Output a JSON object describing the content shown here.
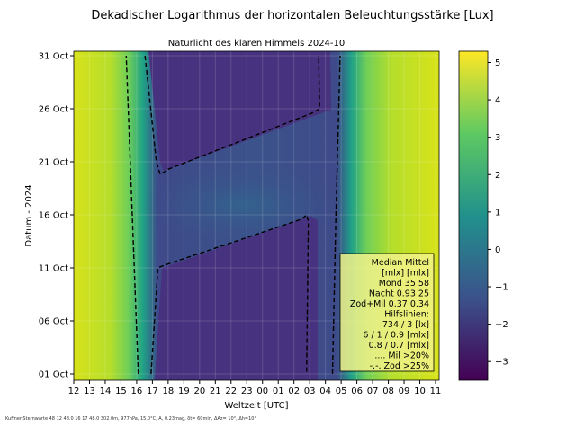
{
  "chart_data": {
    "type": "heatmap",
    "suptitle": "Dekadischer Logarithmus der horizontalen Beleuchtungsstärke [Lux]",
    "title": "Naturlicht des klaren Himmels 2024-10",
    "xlabel": "Weltzeit [UTC]",
    "ylabel": "Datum - 2024",
    "x_ticks": [
      "12",
      "13",
      "14",
      "15",
      "16",
      "17",
      "18",
      "19",
      "20",
      "21",
      "22",
      "23",
      "00",
      "01",
      "02",
      "03",
      "04",
      "05",
      "06",
      "07",
      "08",
      "09",
      "10",
      "11"
    ],
    "y_ticks": [
      {
        "day": 1,
        "label": "01 Oct"
      },
      {
        "day": 6,
        "label": "06 Oct"
      },
      {
        "day": 11,
        "label": "11 Oct"
      },
      {
        "day": 16,
        "label": "16 Oct"
      },
      {
        "day": 21,
        "label": "21 Oct"
      },
      {
        "day": 26,
        "label": "26 Oct"
      },
      {
        "day": 31,
        "label": "31 Oct"
      }
    ],
    "colorbar": {
      "ticks": [
        -3,
        -2,
        -1,
        0,
        1,
        2,
        3,
        4,
        5
      ],
      "range": [
        -3.5,
        5.3
      ],
      "colormap": [
        "#440154",
        "#3b528b",
        "#21918c",
        "#5ec962",
        "#fde725"
      ]
    },
    "grid": true,
    "contour_lines": [
      {
        "style": "dashed",
        "points": [
          [
            "1",
            "16:06"
          ],
          [
            "16",
            "15:43"
          ],
          [
            "31",
            "15:20"
          ]
        ]
      },
      {
        "style": "dashed",
        "points": [
          [
            "1",
            "16:55"
          ],
          [
            "11",
            "17:21"
          ],
          [
            "11.2",
            "17:40"
          ],
          [
            "15.6",
            "02:30"
          ],
          [
            "16",
            "02:48"
          ],
          [
            "15.4",
            "02:55"
          ],
          [
            "1",
            "02:48"
          ]
        ]
      },
      {
        "style": "dashed",
        "points": [
          [
            "31",
            "16:32"
          ],
          [
            "21",
            "17:15"
          ],
          [
            "19.8",
            "17:30"
          ],
          [
            "20.3",
            "18:00"
          ],
          [
            "25.6",
            "03:10"
          ],
          [
            "26",
            "03:38"
          ],
          [
            "31",
            "03:34"
          ]
        ]
      },
      {
        "style": "dashed",
        "points": [
          [
            "1",
            "04:27"
          ],
          [
            "16",
            "04:40"
          ],
          [
            "31",
            "04:56"
          ]
        ]
      }
    ],
    "legend": {
      "placement": "bottom-right",
      "lines": [
        "Median Mittel",
        "[mlx]  [mlx]",
        "Mond   35  58",
        "Nacht 0.93  25",
        "Zod+Mil 0.37  0.34",
        "Hilfslinien:",
        "734 / 3  [lx]",
        "6 /  1 / 0.9 [mlx]",
        "0.8 / 0.7 [mlx]",
        ".... Mil >20%",
        "-.-. Zod >25%"
      ]
    }
  },
  "footer": "Kuffner-Sternwarte 48 12 48.0 16 17 48.0 302.0m,  977hPa, 15.0°C, A, 0.23mag, δt= 60min, ΔAz= 10°, Δh=10°"
}
